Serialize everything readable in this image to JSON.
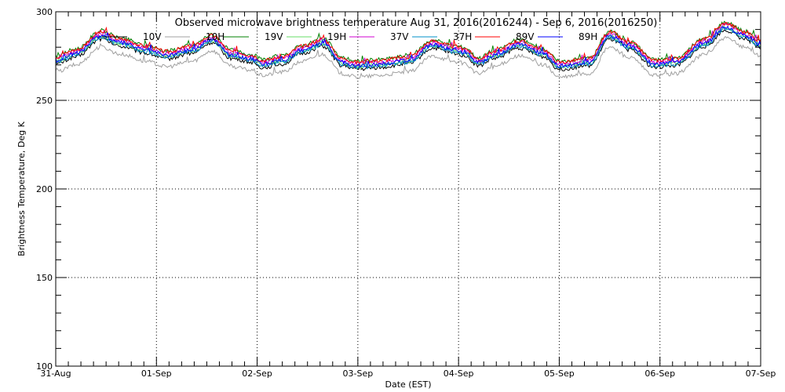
{
  "chart_data": {
    "type": "line",
    "title": "Observed microwave brightness temperature Aug 31, 2016(2016244) - Sep  6, 2016(2016250)",
    "xlabel": "Date (EST)",
    "ylabel": "Brightness Temperature, Deg K",
    "ylim": [
      100,
      300
    ],
    "yticks": [
      100,
      150,
      200,
      250,
      300
    ],
    "xlim": [
      0,
      7
    ],
    "x_tick_labels": [
      "31-Aug",
      "01-Sep",
      "02-Sep",
      "03-Sep",
      "04-Sep",
      "05-Sep",
      "06-Sep",
      "07-Sep"
    ],
    "grid": true,
    "legend_position": "top",
    "base_days": [
      0,
      0.2,
      0.45,
      0.65,
      0.9,
      1.1,
      1.35,
      1.55,
      1.75,
      1.95,
      2.05,
      2.25,
      2.45,
      2.65,
      2.85,
      3.0,
      3.2,
      3.5,
      3.75,
      3.95,
      4.05,
      4.2,
      4.35,
      4.6,
      4.85,
      5.0,
      5.3,
      5.5,
      5.7,
      5.95,
      6.15,
      6.45,
      6.65,
      6.85,
      7.0
    ],
    "base_values": [
      273,
      277,
      287,
      283,
      279,
      276,
      279,
      285,
      276,
      274,
      271,
      273,
      279,
      283,
      272,
      270,
      271,
      273,
      282,
      279,
      278,
      272,
      276,
      282,
      277,
      270,
      272,
      287,
      281,
      271,
      272,
      283,
      292,
      287,
      282
    ],
    "series": [
      {
        "name": "10V",
        "color": "#000000",
        "offset": -2.5
      },
      {
        "name": "10H",
        "color": "#a0a0a0",
        "offset": -7.0
      },
      {
        "name": "19V",
        "color": "#008000",
        "offset": 2.0
      },
      {
        "name": "19H",
        "color": "#66dd66",
        "offset": -1.0
      },
      {
        "name": "37V",
        "color": "#d000d0",
        "offset": 0.5
      },
      {
        "name": "37H",
        "color": "#0090c8",
        "offset": -1.5
      },
      {
        "name": "89V",
        "color": "#ff0000",
        "offset": 1.5
      },
      {
        "name": "89H",
        "color": "#0000ff",
        "offset": -0.5
      }
    ]
  }
}
